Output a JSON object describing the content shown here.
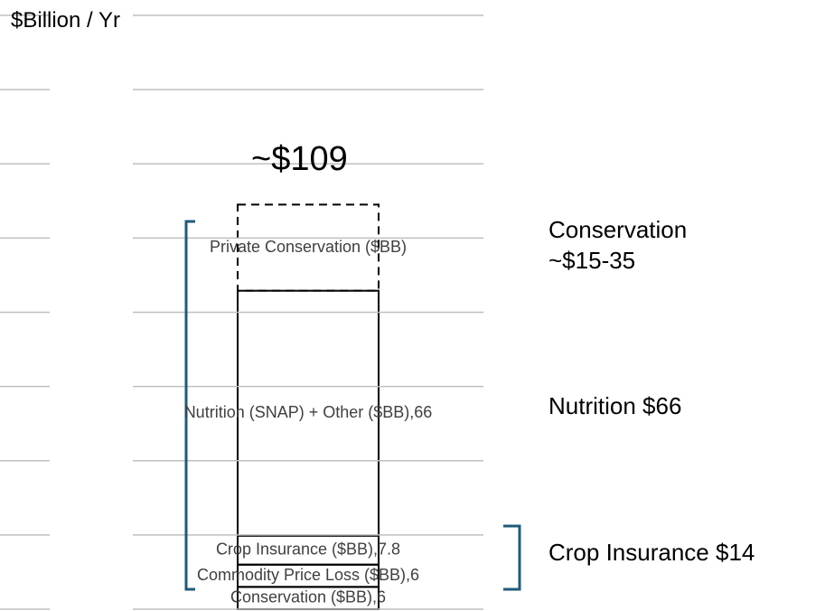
{
  "chart_data": {
    "type": "stacked_bar",
    "ylabel": "$Billion / Yr",
    "ylim": [
      0,
      160
    ],
    "yticks": [
      0,
      20,
      40,
      60,
      80,
      100,
      120,
      140,
      160
    ],
    "grid": true,
    "segments": [
      {
        "value": 6,
        "label": "Conservation ($BB),6",
        "color": "#000000",
        "style": "solid"
      },
      {
        "value": 6,
        "label": "Commodity Price Loss ($BB),6",
        "color": "#000000",
        "style": "solid"
      },
      {
        "value": 7.8,
        "label": "Crop Insurance ($BB),7.8",
        "color": "#000000",
        "style": "solid"
      },
      {
        "value": 66,
        "label": "Nutrition (SNAP) + Other ($BB),66",
        "color": "#000000",
        "style": "solid"
      },
      {
        "value": 23.2,
        "label": "Private Conservation ($BB)",
        "color": "#000000",
        "style": "dashed"
      }
    ],
    "total_label": "~$109",
    "annotations": [
      "Conservation ~$15-35",
      "Nutrition $66",
      "Crop Insurance $14"
    ]
  }
}
